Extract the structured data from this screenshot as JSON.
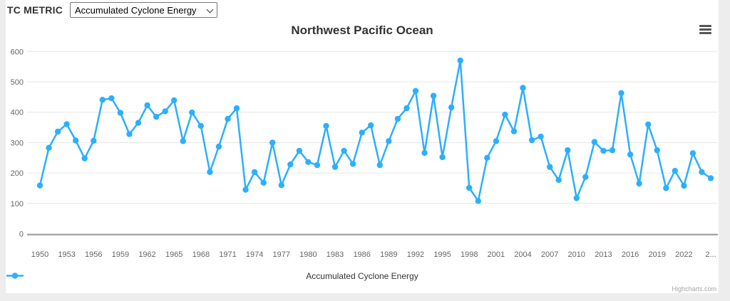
{
  "header": {
    "metric_label": "TC METRIC",
    "metric_select": {
      "value": "Accumulated Cyclone Energy"
    }
  },
  "chart": {
    "title": "Northwest Pacific Ocean",
    "legend_label": "Accumulated Cyclone Energy",
    "credits": "Highcharts.com",
    "colors": {
      "series": "#2caffe",
      "grid": "#e6e6e6",
      "axis_line": "#9e9e9e",
      "axis_label": "#666666",
      "title": "#333333",
      "legend_text": "#333333",
      "credits": "#a3a3a3",
      "page_bg": "#ededed",
      "panel_bg": "#ffffff"
    }
  },
  "chart_data": {
    "type": "line",
    "title": "Northwest Pacific Ocean",
    "xlabel": "",
    "ylabel": "",
    "ylim": [
      0,
      600
    ],
    "grid": true,
    "legend_position": "bottom-center",
    "marker": "circle",
    "x": [
      1950,
      1951,
      1952,
      1953,
      1954,
      1955,
      1956,
      1957,
      1958,
      1959,
      1960,
      1961,
      1962,
      1963,
      1964,
      1965,
      1966,
      1967,
      1968,
      1969,
      1970,
      1971,
      1972,
      1973,
      1974,
      1975,
      1976,
      1977,
      1978,
      1979,
      1980,
      1981,
      1982,
      1983,
      1984,
      1985,
      1986,
      1987,
      1988,
      1989,
      1990,
      1991,
      1992,
      1993,
      1994,
      1995,
      1996,
      1997,
      1998,
      1999,
      2000,
      2001,
      2002,
      2003,
      2004,
      2005,
      2006,
      2007,
      2008,
      2009,
      2010,
      2011,
      2012,
      2013,
      2014,
      2015,
      2016,
      2017,
      2018,
      2019,
      2020,
      2021,
      2022,
      2023,
      2024,
      2025
    ],
    "series": [
      {
        "name": "Accumulated Cyclone Energy",
        "color": "#2caffe",
        "values": [
          159,
          283,
          336,
          361,
          307,
          248,
          306,
          441,
          446,
          398,
          328,
          365,
          423,
          385,
          403,
          439,
          305,
          399,
          355,
          203,
          287,
          378,
          413,
          145,
          203,
          168,
          300,
          160,
          228,
          273,
          236,
          226,
          355,
          220,
          273,
          230,
          333,
          357,
          226,
          305,
          378,
          413,
          470,
          266,
          454,
          252,
          416,
          570,
          151,
          108,
          250,
          305,
          392,
          337,
          480,
          308,
          320,
          220,
          177,
          275,
          117,
          187,
          302,
          273,
          275,
          463,
          261,
          165,
          360,
          275,
          150,
          207,
          158,
          265,
          203,
          183
        ]
      }
    ],
    "y_ticks": [
      0,
      100,
      200,
      300,
      400,
      500,
      600
    ],
    "x_ticks": [
      1950,
      1953,
      1956,
      1959,
      1962,
      1965,
      1968,
      1971,
      1974,
      1977,
      1980,
      1983,
      1986,
      1989,
      1992,
      1995,
      1998,
      2001,
      2004,
      2007,
      2010,
      2013,
      2016,
      2019,
      2022,
      2025
    ],
    "x_tick_labels": [
      "1950",
      "1953",
      "1956",
      "1959",
      "1962",
      "1965",
      "1968",
      "1971",
      "1974",
      "1977",
      "1980",
      "1983",
      "1986",
      "1989",
      "1992",
      "1995",
      "1998",
      "2001",
      "2004",
      "2007",
      "2010",
      "2013",
      "2016",
      "2019",
      "2022",
      "2..."
    ]
  }
}
